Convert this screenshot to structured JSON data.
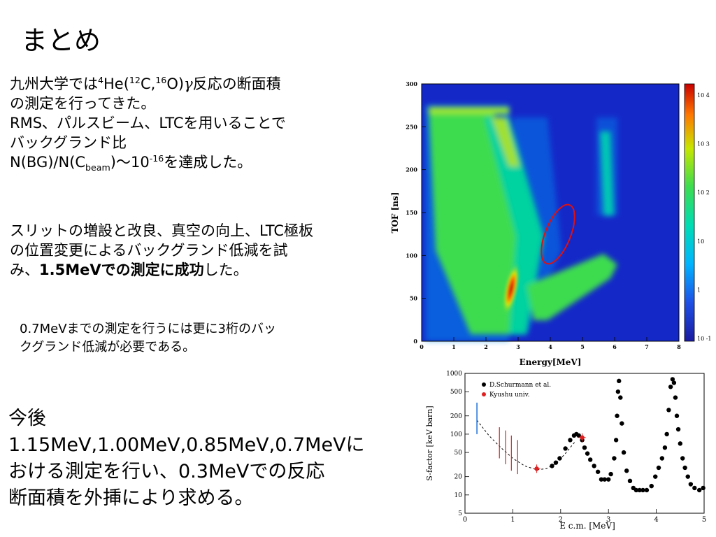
{
  "title": "まとめ",
  "para1": {
    "l1_a": "九州大学では",
    "l1_sup1": "4",
    "l1_b": "He(",
    "l1_sup2": "12",
    "l1_c": "C,",
    "l1_sup3": "16",
    "l1_d": "O)",
    "l1_gamma": "γ",
    "l1_e": "反応の断面積",
    "l2": "の測定を行ってきた。",
    "l3": "RMS、パルスビーム、LTCを用いることで",
    "l4": "バックグランド比",
    "l5_a": "N(BG)/N(C",
    "l5_sub": "beam",
    "l5_b": ")〜10",
    "l5_sup": "-16",
    "l5_c": "を達成した。"
  },
  "para2": {
    "l1": "スリットの増設と改良、真空の向上、LTC極板",
    "l2": "の位置変更によるバックグランド低減を試",
    "l3_a": "み、",
    "l3_bold": "1.5MeVでの測定に成功",
    "l3_b": "した。"
  },
  "note": {
    "l1": "0.7MeVまでの測定を行うには更に3桁のバッ",
    "l2": "クグランド低減が必要である。"
  },
  "future": {
    "heading": "今後",
    "l1": "1.15MeV,1.00MeV,0.85MeV,0.7MeVに",
    "l2": "おける測定を行い、0.3MeVでの反応",
    "l3": "断面積を外挿により求める。"
  },
  "chart_data": [
    {
      "type": "heatmap",
      "xlabel": "Energy[MeV]",
      "ylabel": "TOF [ns]",
      "xlim": [
        0,
        8
      ],
      "ylim": [
        0,
        300
      ],
      "xticks": [
        "0",
        "1",
        "2",
        "3",
        "4",
        "5",
        "6",
        "7",
        "8"
      ],
      "yticks": [
        "0",
        "50",
        "100",
        "150",
        "200",
        "250",
        "300"
      ],
      "colorbar_ticks": [
        "10 -1",
        "1",
        "10",
        "10 2",
        "10 3",
        "10 4"
      ],
      "colors": {
        "background": "#1428c8",
        "low": "#00b4ff",
        "mid": "#3cdc50",
        "high": "#e6e600",
        "peak": "#c80000"
      },
      "annotation": "red ellipse around weak locus near E=4.2 MeV, TOF=120 ns"
    },
    {
      "type": "scatter",
      "xlabel": "E c.m. [MeV]",
      "ylabel": "S-factor [keV barn]",
      "yscale": "log",
      "xlim": [
        0,
        5
      ],
      "ylim": [
        5,
        1000
      ],
      "xticks": [
        "0",
        "1",
        "2",
        "3",
        "4",
        "5"
      ],
      "yticks": [
        "5",
        "10",
        "20",
        "50",
        "100",
        "200",
        "500",
        "1000"
      ],
      "legend": {
        "placement": "top-left",
        "entries": [
          "D.Schurmann et al.",
          "Kyushu univ."
        ]
      },
      "series": [
        {
          "name": "D.Schurmann et al.",
          "color": "#000000",
          "x": [
            1.82,
            1.9,
            1.98,
            2.1,
            2.2,
            2.28,
            2.33,
            2.38,
            2.45,
            2.5,
            2.56,
            2.62,
            2.7,
            2.78,
            2.85,
            2.92,
            3.0,
            3.05,
            3.12,
            3.16,
            3.18,
            3.2,
            3.22,
            3.25,
            3.28,
            3.32,
            3.38,
            3.45,
            3.52,
            3.58,
            3.65,
            3.72,
            3.8,
            3.9,
            3.98,
            4.05,
            4.12,
            4.18,
            4.22,
            4.26,
            4.3,
            4.34,
            4.37,
            4.4,
            4.43,
            4.46,
            4.5,
            4.55,
            4.6,
            4.66,
            4.72,
            4.8,
            4.9,
            4.98
          ],
          "y": [
            30,
            34,
            40,
            58,
            80,
            95,
            100,
            95,
            80,
            60,
            48,
            38,
            30,
            24,
            18,
            18,
            18,
            22,
            40,
            80,
            200,
            500,
            750,
            400,
            150,
            50,
            25,
            17,
            13,
            12,
            12,
            12,
            12,
            14,
            20,
            28,
            40,
            60,
            100,
            250,
            600,
            800,
            700,
            400,
            200,
            120,
            70,
            40,
            28,
            20,
            15,
            13,
            12,
            13
          ]
        },
        {
          "name": "Kyushu univ.",
          "color": "#e02020",
          "x": [
            1.5,
            2.45
          ],
          "y": [
            27,
            88
          ]
        }
      ],
      "extra_marks": {
        "blue_error_bar": {
          "x": 0.25,
          "y_low": 100,
          "y_high": 330,
          "color": "#1a6fd6"
        },
        "red_upper_limits": [
          {
            "x": 0.72,
            "y_low": 40,
            "y_high": 130
          },
          {
            "x": 0.85,
            "y_low": 32,
            "y_high": 115
          },
          {
            "x": 0.97,
            "y_low": 25,
            "y_high": 95
          },
          {
            "x": 1.1,
            "y_low": 22,
            "y_high": 80
          }
        ],
        "dashed_fit": {
          "x": [
            0.25,
            0.5,
            0.75,
            1.0,
            1.25,
            1.5,
            1.7,
            1.9,
            2.1,
            2.3
          ],
          "y": [
            170,
            95,
            60,
            40,
            30,
            26,
            27,
            33,
            48,
            75
          ]
        }
      }
    }
  ]
}
